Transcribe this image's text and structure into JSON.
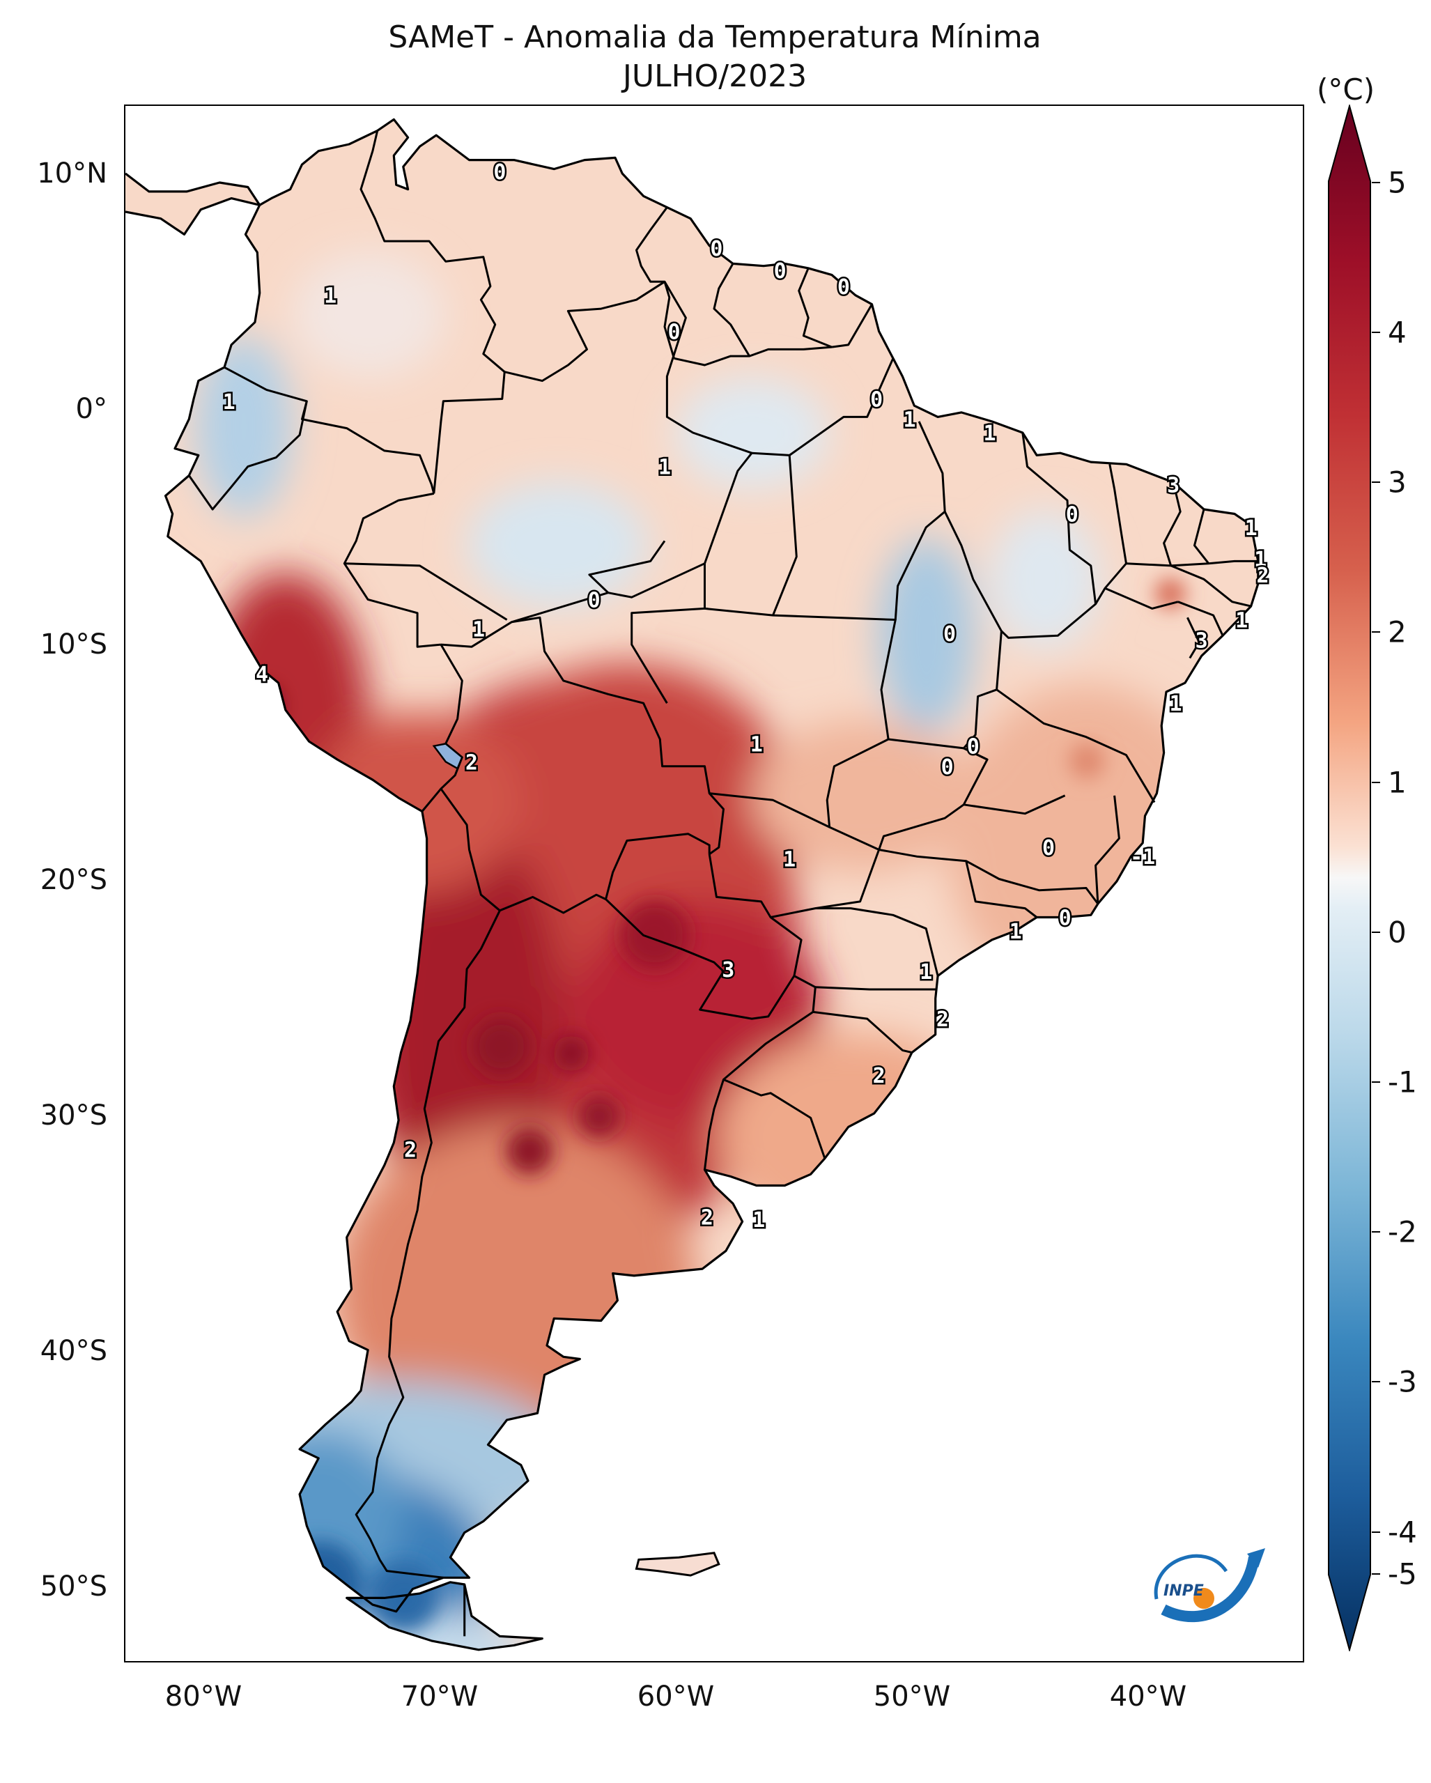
{
  "title": {
    "line1": "SAMeT - Anomalia da Temperatura Mínima",
    "line2": "JULHO/2023"
  },
  "colorbar": {
    "unit": "(°C)",
    "ticks": [
      "5",
      "4",
      "3",
      "2",
      "1",
      "0",
      "-1",
      "-2",
      "-3",
      "-4",
      "-5"
    ],
    "min": -5,
    "max": 5,
    "colors": [
      "#67001f",
      "#b2182b",
      "#d6604d",
      "#f4a582",
      "#fddbc7",
      "#f7f7f7",
      "#d1e5f0",
      "#92c5de",
      "#4393c3",
      "#2166ac",
      "#053061"
    ]
  },
  "axes": {
    "lat_labels": [
      "10°N",
      "0°",
      "10°S",
      "20°S",
      "30°S",
      "40°S",
      "50°S"
    ],
    "lon_labels": [
      "80°W",
      "70°W",
      "60°W",
      "50°W",
      "40°W"
    ],
    "lon_range": [
      -83,
      -33
    ],
    "lat_range": [
      -56,
      13
    ]
  },
  "contour_labels": [
    {
      "text": "0",
      "lon": -67.1,
      "lat": 10.1
    },
    {
      "text": "0",
      "lon": -57.9,
      "lat": 6.7
    },
    {
      "text": "0",
      "lon": -55.2,
      "lat": 5.7
    },
    {
      "text": "0",
      "lon": -52.5,
      "lat": 5.0
    },
    {
      "text": "1",
      "lon": -74.3,
      "lat": 4.6
    },
    {
      "text": "0",
      "lon": -59.7,
      "lat": 3.0
    },
    {
      "text": "1",
      "lon": -78.6,
      "lat": -0.1
    },
    {
      "text": "0",
      "lon": -51.1,
      "lat": 0.0
    },
    {
      "text": "1",
      "lon": -49.7,
      "lat": -0.9
    },
    {
      "text": "1",
      "lon": -46.3,
      "lat": -1.5
    },
    {
      "text": "1",
      "lon": -60.1,
      "lat": -3.0
    },
    {
      "text": "3",
      "lon": -38.5,
      "lat": -3.8
    },
    {
      "text": "0",
      "lon": -42.8,
      "lat": -5.1
    },
    {
      "text": "1",
      "lon": -35.2,
      "lat": -5.7
    },
    {
      "text": "1",
      "lon": -34.8,
      "lat": -7.1
    },
    {
      "text": "2",
      "lon": -34.7,
      "lat": -7.8
    },
    {
      "text": "0",
      "lon": -63.1,
      "lat": -8.9
    },
    {
      "text": "1",
      "lon": -68.0,
      "lat": -10.2
    },
    {
      "text": "0",
      "lon": -48.0,
      "lat": -10.4
    },
    {
      "text": "1",
      "lon": -35.6,
      "lat": -9.8
    },
    {
      "text": "3",
      "lon": -37.3,
      "lat": -10.7
    },
    {
      "text": "4",
      "lon": -77.2,
      "lat": -12.2
    },
    {
      "text": "1",
      "lon": -38.4,
      "lat": -13.5
    },
    {
      "text": "1",
      "lon": -56.2,
      "lat": -15.3
    },
    {
      "text": "0",
      "lon": -47.0,
      "lat": -15.4
    },
    {
      "text": "0",
      "lon": -48.1,
      "lat": -16.3
    },
    {
      "text": "2",
      "lon": -68.3,
      "lat": -16.1
    },
    {
      "text": "1",
      "lon": -54.8,
      "lat": -20.4
    },
    {
      "text": "0",
      "lon": -43.8,
      "lat": -19.9
    },
    {
      "text": "-1",
      "lon": -39.8,
      "lat": -20.3
    },
    {
      "text": "0",
      "lon": -43.1,
      "lat": -23.0
    },
    {
      "text": "1",
      "lon": -45.2,
      "lat": -23.6
    },
    {
      "text": "3",
      "lon": -57.4,
      "lat": -25.3
    },
    {
      "text": "1",
      "lon": -49.0,
      "lat": -25.4
    },
    {
      "text": "2",
      "lon": -48.3,
      "lat": -27.5
    },
    {
      "text": "2",
      "lon": -51.0,
      "lat": -30.0
    },
    {
      "text": "2",
      "lon": -70.9,
      "lat": -33.3
    },
    {
      "text": "2",
      "lon": -58.3,
      "lat": -36.3
    },
    {
      "text": "1",
      "lon": -56.1,
      "lat": -36.4
    }
  ],
  "logo": {
    "text": "INPE"
  }
}
